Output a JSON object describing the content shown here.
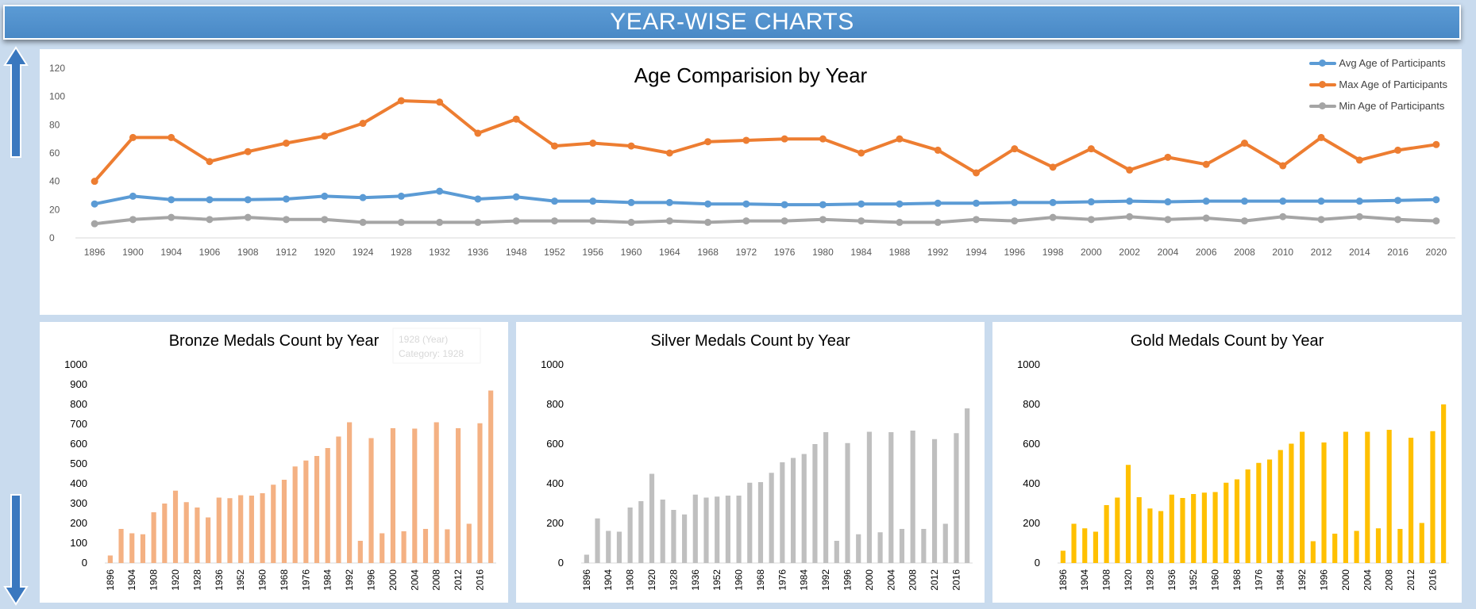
{
  "header": {
    "title": "YEAR-WISE CHARTS"
  },
  "colors": {
    "avg": "#5b9bd5",
    "max": "#ed7d31",
    "min": "#a5a5a5",
    "bronze": "#f4b183",
    "silver": "#bfbfbf",
    "gold": "#ffc000"
  },
  "icons": {
    "up": "arrow-up-icon",
    "down": "arrow-down-icon"
  },
  "chart_data": [
    {
      "type": "line",
      "title": "Age Comparision by Year",
      "categories": [
        "1896",
        "1900",
        "1904",
        "1906",
        "1908",
        "1912",
        "1920",
        "1924",
        "1928",
        "1932",
        "1936",
        "1948",
        "1952",
        "1956",
        "1960",
        "1964",
        "1968",
        "1972",
        "1976",
        "1980",
        "1984",
        "1988",
        "1992",
        "1994",
        "1996",
        "1998",
        "2000",
        "2002",
        "2004",
        "2006",
        "2008",
        "2010",
        "2012",
        "2014",
        "2016",
        "2020"
      ],
      "series": [
        {
          "name": "Avg Age of Participants",
          "values": [
            24,
            29.5,
            27,
            27,
            27,
            27.5,
            29.5,
            28.5,
            29.5,
            33,
            27.5,
            29,
            26,
            26,
            25,
            25,
            24,
            24,
            23.5,
            23.5,
            24,
            24,
            24.5,
            24.5,
            25,
            25,
            25.5,
            26,
            25.5,
            26,
            26,
            26,
            26,
            26,
            26.5,
            27
          ]
        },
        {
          "name": "Max Age of Participants",
          "values": [
            40,
            71,
            71,
            54,
            61,
            67,
            72,
            81,
            97,
            96,
            74,
            84,
            65,
            67,
            65,
            60,
            68,
            69,
            70,
            70,
            60,
            70,
            62,
            46,
            63,
            50,
            63,
            48,
            57,
            52,
            67,
            51,
            71,
            55,
            62,
            66
          ]
        },
        {
          "name": "Min Age of Participants",
          "values": [
            10,
            13,
            14.5,
            13,
            14.5,
            13,
            13,
            11,
            11,
            11,
            11,
            12,
            12,
            12,
            11,
            12,
            11,
            12,
            12,
            13,
            12,
            11,
            11,
            13,
            12,
            14.5,
            13,
            15,
            13,
            14,
            12,
            15,
            13,
            15,
            13,
            12
          ]
        }
      ],
      "ylim": [
        0,
        120
      ],
      "yticks": [
        0,
        20,
        40,
        60,
        80,
        100,
        120
      ],
      "legend": "top-right",
      "grid": false
    },
    {
      "type": "bar",
      "title": "Bronze Medals Count by Year",
      "categories": [
        "1896",
        "1900",
        "1904",
        "1906",
        "1908",
        "1912",
        "1920",
        "1924",
        "1928",
        "1932",
        "1936",
        "1948",
        "1952",
        "1956",
        "1960",
        "1964",
        "1968",
        "1972",
        "1976",
        "1980",
        "1984",
        "1988",
        "1992",
        "1994",
        "1996",
        "1998",
        "2000",
        "2002",
        "2004",
        "2006",
        "2008",
        "2010",
        "2012",
        "2014",
        "2016",
        "2020"
      ],
      "xtick_labels": [
        "1896",
        "1904",
        "1908",
        "1920",
        "1928",
        "1936",
        "1952",
        "1960",
        "1968",
        "1976",
        "1984",
        "1992",
        "1996",
        "2000",
        "2004",
        "2008",
        "2012",
        "2016"
      ],
      "values": [
        38,
        172,
        150,
        145,
        256,
        300,
        365,
        307,
        280,
        230,
        330,
        327,
        342,
        340,
        352,
        395,
        420,
        487,
        517,
        540,
        580,
        638,
        710,
        112,
        630,
        150,
        680,
        160,
        678,
        172,
        710,
        170,
        680,
        198,
        705,
        870
      ],
      "ylim": [
        0,
        1000
      ],
      "yticks": [
        0,
        100,
        200,
        300,
        400,
        500,
        600,
        700,
        800,
        900,
        1000
      ],
      "tooltip": [
        "1928 (Year)",
        "Category: 1928"
      ]
    },
    {
      "type": "bar",
      "title": "Silver Medals Count by Year",
      "categories": [
        "1896",
        "1900",
        "1904",
        "1906",
        "1908",
        "1912",
        "1920",
        "1924",
        "1928",
        "1932",
        "1936",
        "1948",
        "1952",
        "1956",
        "1960",
        "1964",
        "1968",
        "1972",
        "1976",
        "1980",
        "1984",
        "1988",
        "1992",
        "1994",
        "1996",
        "1998",
        "2000",
        "2002",
        "2004",
        "2006",
        "2008",
        "2010",
        "2012",
        "2014",
        "2016",
        "2020"
      ],
      "xtick_labels": [
        "1896",
        "1904",
        "1908",
        "1920",
        "1928",
        "1936",
        "1952",
        "1960",
        "1968",
        "1976",
        "1984",
        "1992",
        "1996",
        "2000",
        "2004",
        "2008",
        "2012",
        "2016"
      ],
      "values": [
        42,
        225,
        162,
        158,
        280,
        312,
        450,
        320,
        268,
        245,
        345,
        330,
        335,
        340,
        340,
        405,
        408,
        455,
        508,
        530,
        550,
        600,
        660,
        112,
        605,
        145,
        662,
        155,
        660,
        172,
        668,
        172,
        625,
        198,
        655,
        780
      ],
      "ylim": [
        0,
        1000
      ],
      "yticks": [
        0,
        200,
        400,
        600,
        800,
        1000
      ]
    },
    {
      "type": "bar",
      "title": "Gold Medals Count by Year",
      "categories": [
        "1896",
        "1900",
        "1904",
        "1906",
        "1908",
        "1912",
        "1920",
        "1924",
        "1928",
        "1932",
        "1936",
        "1948",
        "1952",
        "1956",
        "1960",
        "1964",
        "1968",
        "1972",
        "1976",
        "1980",
        "1984",
        "1988",
        "1992",
        "1994",
        "1996",
        "1998",
        "2000",
        "2002",
        "2004",
        "2006",
        "2008",
        "2010",
        "2012",
        "2014",
        "2016",
        "2020"
      ],
      "xtick_labels": [
        "1896",
        "1904",
        "1908",
        "1920",
        "1928",
        "1936",
        "1952",
        "1960",
        "1968",
        "1976",
        "1984",
        "1992",
        "1996",
        "2000",
        "2004",
        "2008",
        "2012",
        "2016"
      ],
      "values": [
        62,
        198,
        175,
        158,
        292,
        330,
        495,
        332,
        275,
        262,
        345,
        328,
        348,
        355,
        358,
        405,
        422,
        472,
        505,
        522,
        570,
        602,
        662,
        110,
        608,
        148,
        662,
        162,
        662,
        175,
        672,
        172,
        632,
        202,
        665,
        800
      ],
      "ylim": [
        0,
        1000
      ],
      "yticks": [
        0,
        200,
        400,
        600,
        800,
        1000
      ]
    }
  ]
}
